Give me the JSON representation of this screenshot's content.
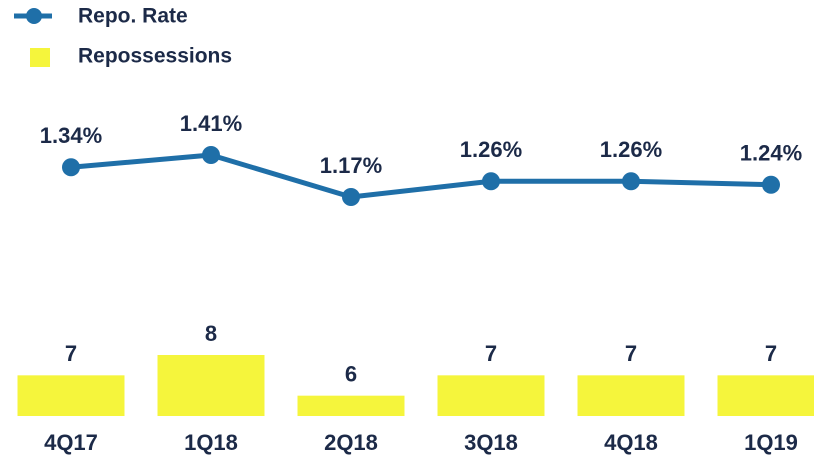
{
  "chart_data": {
    "type": "bar",
    "categories": [
      "4Q17",
      "1Q18",
      "2Q18",
      "3Q18",
      "4Q18",
      "1Q19"
    ],
    "ylim": [
      5,
      8
    ],
    "y2lim": [
      1.17,
      1.41
    ],
    "legend": "top-left",
    "series": [
      {
        "name": "Repo. Rate",
        "type": "line",
        "axis": "y2",
        "color": "#1f6fa8",
        "values": [
          1.34,
          1.41,
          1.17,
          1.26,
          1.26,
          1.24
        ],
        "value_labels": [
          "1.34%",
          "1.41%",
          "1.17%",
          "1.26%",
          "1.26%",
          "1.24%"
        ]
      },
      {
        "name": "Repossessions",
        "type": "bar",
        "color": "#f5f53c",
        "values": [
          7,
          8,
          6,
          7,
          7,
          7
        ]
      }
    ]
  }
}
